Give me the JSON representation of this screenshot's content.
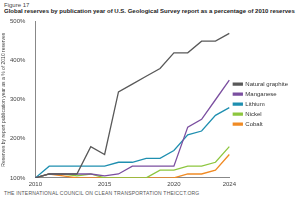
{
  "chart_data": {
    "type": "line",
    "figure_label": "Figure 17",
    "title": "Global reserves by publication year of U.S. Geological Survey report as a percentage of 2010 reserves",
    "y_label": "Reserves by report publication year as a % of 2010 reserves",
    "footer": "THE INTERNATIONAL COUNCIL ON CLEAN TRANSPORTATION THEICCT.ORG",
    "categories": [
      "2010",
      null,
      null,
      null,
      null,
      "2015",
      null,
      null,
      null,
      null,
      "2020",
      null,
      null,
      null,
      "2024"
    ],
    "series": [
      {
        "name": "Natural graphite",
        "color": "#595959",
        "values": [
          100,
          110,
          110,
          110,
          180,
          160,
          320,
          340,
          360,
          380,
          420,
          420,
          450,
          450,
          470
        ]
      },
      {
        "name": "Manganese",
        "color": "#7b4fa0",
        "values": [
          100,
          110,
          110,
          110,
          110,
          105,
          110,
          130,
          130,
          130,
          130,
          230,
          250,
          300,
          350
        ]
      },
      {
        "name": "Lithium",
        "color": "#1f8fb0",
        "values": [
          100,
          130,
          130,
          130,
          130,
          130,
          140,
          140,
          150,
          150,
          170,
          210,
          220,
          260,
          280
        ]
      },
      {
        "name": "Nickel",
        "color": "#8dc63f",
        "values": [
          100,
          110,
          110,
          105,
          110,
          100,
          100,
          100,
          100,
          120,
          120,
          130,
          130,
          140,
          180
        ]
      },
      {
        "name": "Cobalt",
        "color": "#f08a24",
        "values": [
          100,
          110,
          105,
          100,
          100,
          100,
          100,
          100,
          100,
          100,
          100,
          110,
          110,
          120,
          160
        ]
      }
    ],
    "ylim": [
      100,
      500
    ],
    "yticks": [
      {
        "value": 100,
        "label": "100%"
      },
      {
        "value": 200,
        "label": "200%"
      },
      {
        "value": 300,
        "label": "300%"
      },
      {
        "value": 400,
        "label": "400%"
      },
      {
        "value": 500,
        "label": "500%"
      }
    ],
    "grid": false,
    "legend": "right"
  }
}
